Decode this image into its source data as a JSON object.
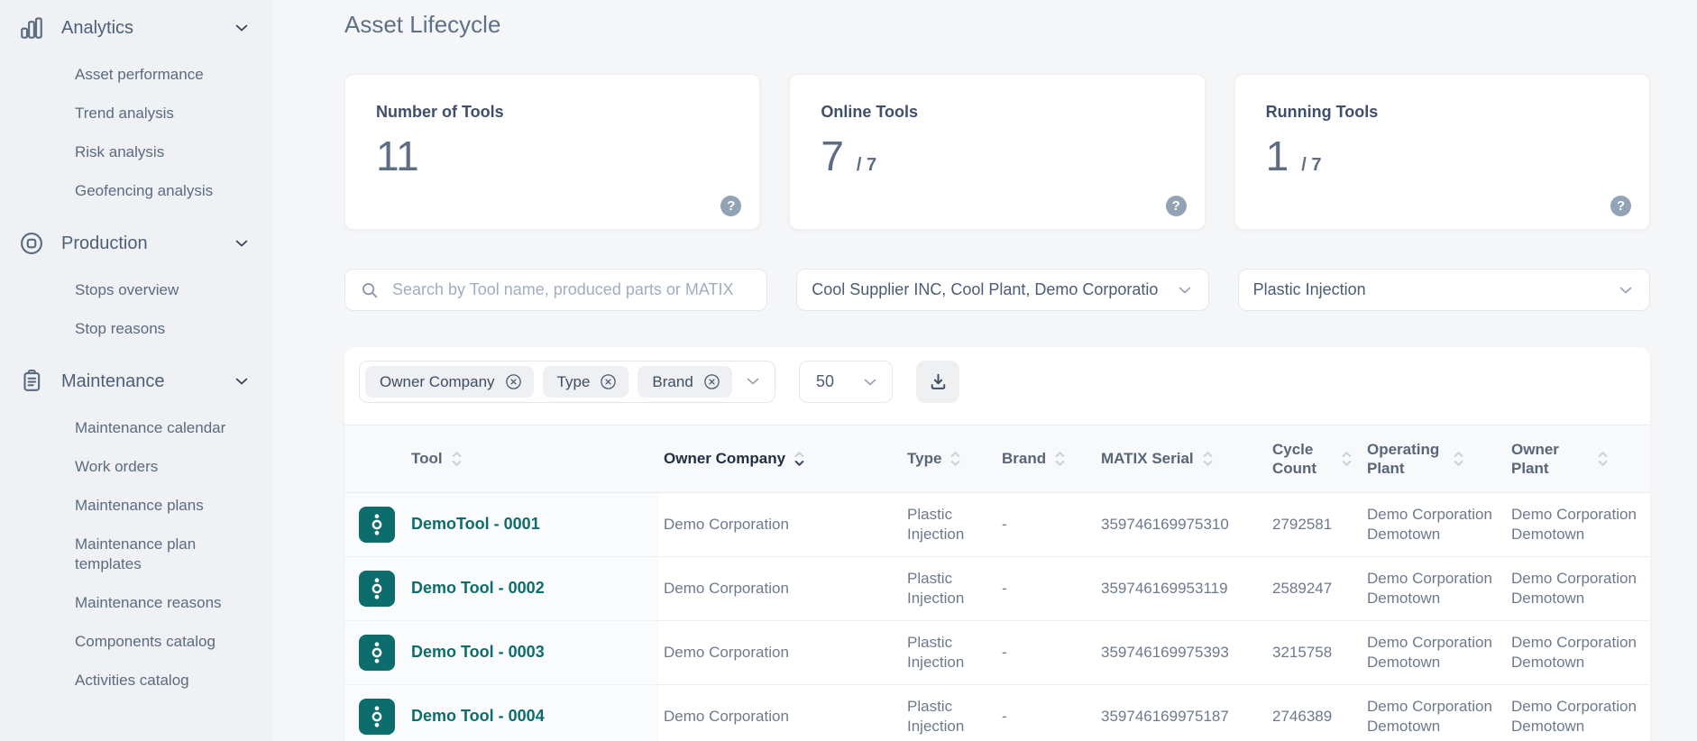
{
  "page_title": "Asset Lifecycle",
  "sidebar": {
    "sections": [
      {
        "label": "Analytics",
        "icon": "bar-chart-icon",
        "items": [
          "Asset performance",
          "Trend analysis",
          "Risk analysis",
          "Geofencing analysis"
        ]
      },
      {
        "label": "Production",
        "icon": "production-icon",
        "items": [
          "Stops overview",
          "Stop reasons"
        ]
      },
      {
        "label": "Maintenance",
        "icon": "maintenance-icon",
        "items": [
          "Maintenance calendar",
          "Work orders",
          "Maintenance plans",
          "Maintenance plan templates",
          "Maintenance reasons",
          "Components catalog",
          "Activities catalog"
        ]
      }
    ]
  },
  "stat_cards": [
    {
      "label": "Number of Tools",
      "value": "11",
      "suffix": "",
      "help_icon": "help-icon"
    },
    {
      "label": "Online Tools",
      "value": "7",
      "suffix": "/ 7",
      "help_icon": "help-icon"
    },
    {
      "label": "Running Tools",
      "value": "1",
      "suffix": "/ 7",
      "help_icon": "help-icon"
    }
  ],
  "filters": {
    "search_placeholder": "Search by Tool name, produced parts or MATIX",
    "supplier_value": "Cool Supplier INC, Cool Plant, Demo Corporatio",
    "tool_type_value": "Plastic Injection"
  },
  "table_toolbar": {
    "filter_chips": [
      "Owner Company",
      "Type",
      "Brand"
    ],
    "page_size": "50"
  },
  "table": {
    "columns": [
      {
        "key": "tool",
        "label": "Tool",
        "sorted": false
      },
      {
        "key": "owner_company",
        "label": "Owner Company",
        "sorted": true
      },
      {
        "key": "type",
        "label": "Type",
        "sorted": false
      },
      {
        "key": "brand",
        "label": "Brand",
        "sorted": false
      },
      {
        "key": "matix_serial",
        "label": "MATIX Serial",
        "sorted": false
      },
      {
        "key": "cycle_count",
        "label": "Cycle Count",
        "sorted": false
      },
      {
        "key": "operating_plant",
        "label": "Operating Plant",
        "sorted": false
      },
      {
        "key": "owner_plant",
        "label": "Owner Plant",
        "sorted": false
      }
    ],
    "rows": [
      {
        "tool": "DemoTool - 0001",
        "owner_company": "Demo Corporation",
        "type": "Plastic Injection",
        "brand": "-",
        "matix_serial": "359746169975310",
        "cycle_count": "2792581",
        "operating_plant": "Demo Corporation Demotown",
        "owner_plant": "Demo Corporation Demotown"
      },
      {
        "tool": "Demo Tool - 0002",
        "owner_company": "Demo Corporation",
        "type": "Plastic Injection",
        "brand": "-",
        "matix_serial": "359746169953119",
        "cycle_count": "2589247",
        "operating_plant": "Demo Corporation Demotown",
        "owner_plant": "Demo Corporation Demotown"
      },
      {
        "tool": "Demo Tool - 0003",
        "owner_company": "Demo Corporation",
        "type": "Plastic Injection",
        "brand": "-",
        "matix_serial": "359746169975393",
        "cycle_count": "3215758",
        "operating_plant": "Demo Corporation Demotown",
        "owner_plant": "Demo Corporation Demotown"
      },
      {
        "tool": "Demo Tool - 0004",
        "owner_company": "Demo Corporation",
        "type": "Plastic Injection",
        "brand": "-",
        "matix_serial": "359746169975187",
        "cycle_count": "2746389",
        "operating_plant": "Demo Corporation Demotown",
        "owner_plant": "Demo Corporation Demotown"
      }
    ]
  },
  "colors": {
    "accent_teal": "#0d6c6c",
    "help_icon_bg": "#94a2b6",
    "tool_column_bg": "#fafbfd",
    "header_row_bg": "#f7f9fb"
  }
}
